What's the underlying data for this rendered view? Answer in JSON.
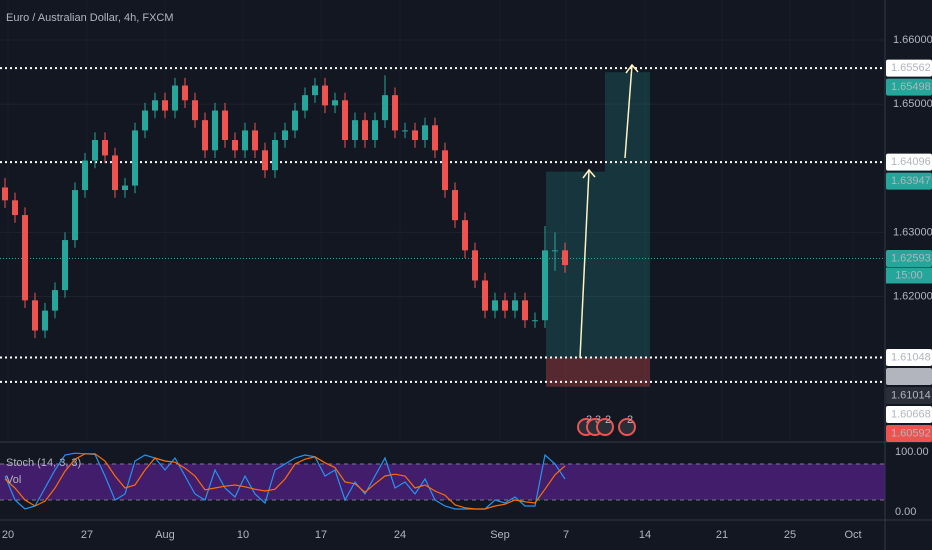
{
  "header": {
    "title": "Euro / Australian Dollar, 4h, FXCM"
  },
  "chart_data": {
    "type": "candlestick",
    "ylim": [
      1.59762,
      1.66624
    ],
    "yticks": [
      {
        "value": 1.66,
        "label": "1.66000"
      },
      {
        "value": 1.65,
        "label": "1.65000"
      },
      {
        "value": 1.63,
        "label": "1.63000"
      },
      {
        "value": 1.62,
        "label": "1.62000"
      }
    ],
    "up_color": "#26a69a",
    "down_color": "#ef5350",
    "candles": [
      [
        1.637,
        1.6385,
        1.6338,
        1.635
      ],
      [
        1.635,
        1.6362,
        1.6315,
        1.6327
      ],
      [
        1.6327,
        1.6339,
        1.6182,
        1.6194
      ],
      [
        1.6194,
        1.6206,
        1.6135,
        1.6147
      ],
      [
        1.6147,
        1.619,
        1.6135,
        1.6178
      ],
      [
        1.6178,
        1.6222,
        1.6166,
        1.621
      ],
      [
        1.621,
        1.63,
        1.6198,
        1.6288
      ],
      [
        1.6288,
        1.6378,
        1.6276,
        1.6366
      ],
      [
        1.6366,
        1.6424,
        1.6354,
        1.6412
      ],
      [
        1.6412,
        1.6456,
        1.64,
        1.6444
      ],
      [
        1.6444,
        1.6456,
        1.6408,
        1.642
      ],
      [
        1.642,
        1.6432,
        1.6354,
        1.6366
      ],
      [
        1.6366,
        1.6385,
        1.6354,
        1.6373
      ],
      [
        1.6373,
        1.6471,
        1.6361,
        1.6459
      ],
      [
        1.6459,
        1.6502,
        1.6447,
        1.649
      ],
      [
        1.649,
        1.6518,
        1.6478,
        1.6506
      ],
      [
        1.6506,
        1.6518,
        1.6478,
        1.649
      ],
      [
        1.649,
        1.6541,
        1.6478,
        1.6529
      ],
      [
        1.6529,
        1.6541,
        1.6494,
        1.6506
      ],
      [
        1.6506,
        1.6518,
        1.6463,
        1.6475
      ],
      [
        1.6475,
        1.6487,
        1.6416,
        1.6428
      ],
      [
        1.6428,
        1.6502,
        1.6416,
        1.649
      ],
      [
        1.649,
        1.6502,
        1.6432,
        1.6444
      ],
      [
        1.6444,
        1.6456,
        1.6416,
        1.6428
      ],
      [
        1.6428,
        1.6471,
        1.6416,
        1.6459
      ],
      [
        1.6459,
        1.6471,
        1.6416,
        1.6428
      ],
      [
        1.6428,
        1.644,
        1.6385,
        1.6397
      ],
      [
        1.6397,
        1.6456,
        1.6385,
        1.6444
      ],
      [
        1.6444,
        1.6471,
        1.6432,
        1.6459
      ],
      [
        1.6459,
        1.6502,
        1.6447,
        1.649
      ],
      [
        1.649,
        1.6526,
        1.6478,
        1.6514
      ],
      [
        1.6514,
        1.6541,
        1.6502,
        1.6529
      ],
      [
        1.6529,
        1.6541,
        1.6486,
        1.6498
      ],
      [
        1.6498,
        1.6518,
        1.6486,
        1.6506
      ],
      [
        1.6506,
        1.6518,
        1.6432,
        1.6444
      ],
      [
        1.6444,
        1.6487,
        1.6432,
        1.6475
      ],
      [
        1.6475,
        1.6487,
        1.6432,
        1.6444
      ],
      [
        1.6444,
        1.6487,
        1.6432,
        1.6475
      ],
      [
        1.6475,
        1.6545,
        1.6463,
        1.6514
      ],
      [
        1.6514,
        1.6526,
        1.6447,
        1.6459
      ],
      [
        1.6459,
        1.6471,
        1.6447,
        1.6459
      ],
      [
        1.6459,
        1.6471,
        1.6432,
        1.6444
      ],
      [
        1.6444,
        1.6479,
        1.6432,
        1.6467
      ],
      [
        1.6467,
        1.6479,
        1.6416,
        1.6428
      ],
      [
        1.6428,
        1.644,
        1.6354,
        1.6366
      ],
      [
        1.6366,
        1.6378,
        1.6307,
        1.6319
      ],
      [
        1.6319,
        1.6331,
        1.626,
        1.6272
      ],
      [
        1.6272,
        1.6284,
        1.6213,
        1.6225
      ],
      [
        1.6225,
        1.6237,
        1.6166,
        1.6178
      ],
      [
        1.6178,
        1.6206,
        1.6166,
        1.6194
      ],
      [
        1.6194,
        1.6206,
        1.6166,
        1.6178
      ],
      [
        1.6178,
        1.6206,
        1.6166,
        1.6194
      ],
      [
        1.6194,
        1.6206,
        1.6151,
        1.6163
      ],
      [
        1.6163,
        1.6175,
        1.6151,
        1.6163
      ],
      [
        1.6163,
        1.631,
        1.6151,
        1.6272
      ],
      [
        1.6272,
        1.63,
        1.624,
        1.6272
      ],
      [
        1.6272,
        1.6284,
        1.6237,
        1.6249
      ]
    ],
    "price_labels": [
      {
        "value": 1.65562,
        "label": "1.65562",
        "color": "#ffffff",
        "line": "dotted"
      },
      {
        "value": 1.65498,
        "label": "1.65498",
        "color": "#26a69a"
      },
      {
        "value": 1.64096,
        "label": "1.64096",
        "color": "#ffffff",
        "line": "dotted"
      },
      {
        "value": 1.63947,
        "label": "1.63947",
        "color": "#26a69a"
      },
      {
        "value": 1.62593,
        "label": "1.62593",
        "color": "#26a69a",
        "line": "thin"
      },
      {
        "value": 1.61048,
        "label": "1.61048",
        "color": "#ffffff",
        "line": "dotted"
      },
      {
        "value": 1.61029,
        "label": "1.61029",
        "color": "#b2b5be"
      },
      {
        "value": 1.61014,
        "label": "1.61014",
        "color": "#2a2e39"
      },
      {
        "value": 1.60668,
        "label": "1.60668",
        "color": "#ffffff",
        "line": "dotted"
      },
      {
        "value": 1.60592,
        "label": "1.60592",
        "color": "#ef5350"
      }
    ],
    "countdown": "15:00",
    "x_labels": [
      "20",
      "27",
      "Aug",
      "10",
      "17",
      "24",
      "Sep",
      "7",
      "14",
      "21",
      "25",
      "Oct"
    ],
    "events": [
      "2",
      "3",
      "2",
      "2"
    ]
  },
  "stoch": {
    "type": "line",
    "title": "Stoch (14, 3, 3)",
    "subtitle": "Vol",
    "ylim": [
      0,
      100
    ],
    "yticks": [
      {
        "value": 100,
        "label": "100.00"
      },
      {
        "value": 0,
        "label": "0.00"
      }
    ],
    "bands": [
      80,
      20
    ],
    "band_color": "#4a1f78",
    "series": [
      {
        "name": "%K",
        "color": "#2196f3",
        "values": [
          60,
          20,
          5,
          10,
          40,
          70,
          95,
          98,
          97,
          96,
          60,
          20,
          30,
          85,
          95,
          90,
          70,
          90,
          60,
          30,
          20,
          70,
          40,
          25,
          60,
          30,
          15,
          70,
          80,
          90,
          95,
          92,
          60,
          70,
          20,
          50,
          30,
          60,
          90,
          40,
          50,
          30,
          55,
          20,
          10,
          5,
          5,
          5,
          5,
          20,
          15,
          25,
          10,
          10,
          95,
          80,
          55
        ]
      },
      {
        "name": "%D",
        "color": "#ff6d00",
        "values": [
          55,
          40,
          20,
          10,
          18,
          40,
          68,
          88,
          97,
          97,
          85,
          60,
          40,
          45,
          70,
          90,
          85,
          83,
          73,
          60,
          37,
          40,
          43,
          45,
          42,
          38,
          35,
          38,
          55,
          80,
          88,
          92,
          82,
          74,
          50,
          47,
          33,
          47,
          60,
          63,
          60,
          40,
          45,
          35,
          28,
          12,
          7,
          5,
          5,
          10,
          13,
          20,
          17,
          15,
          38,
          62,
          77
        ]
      }
    ]
  }
}
